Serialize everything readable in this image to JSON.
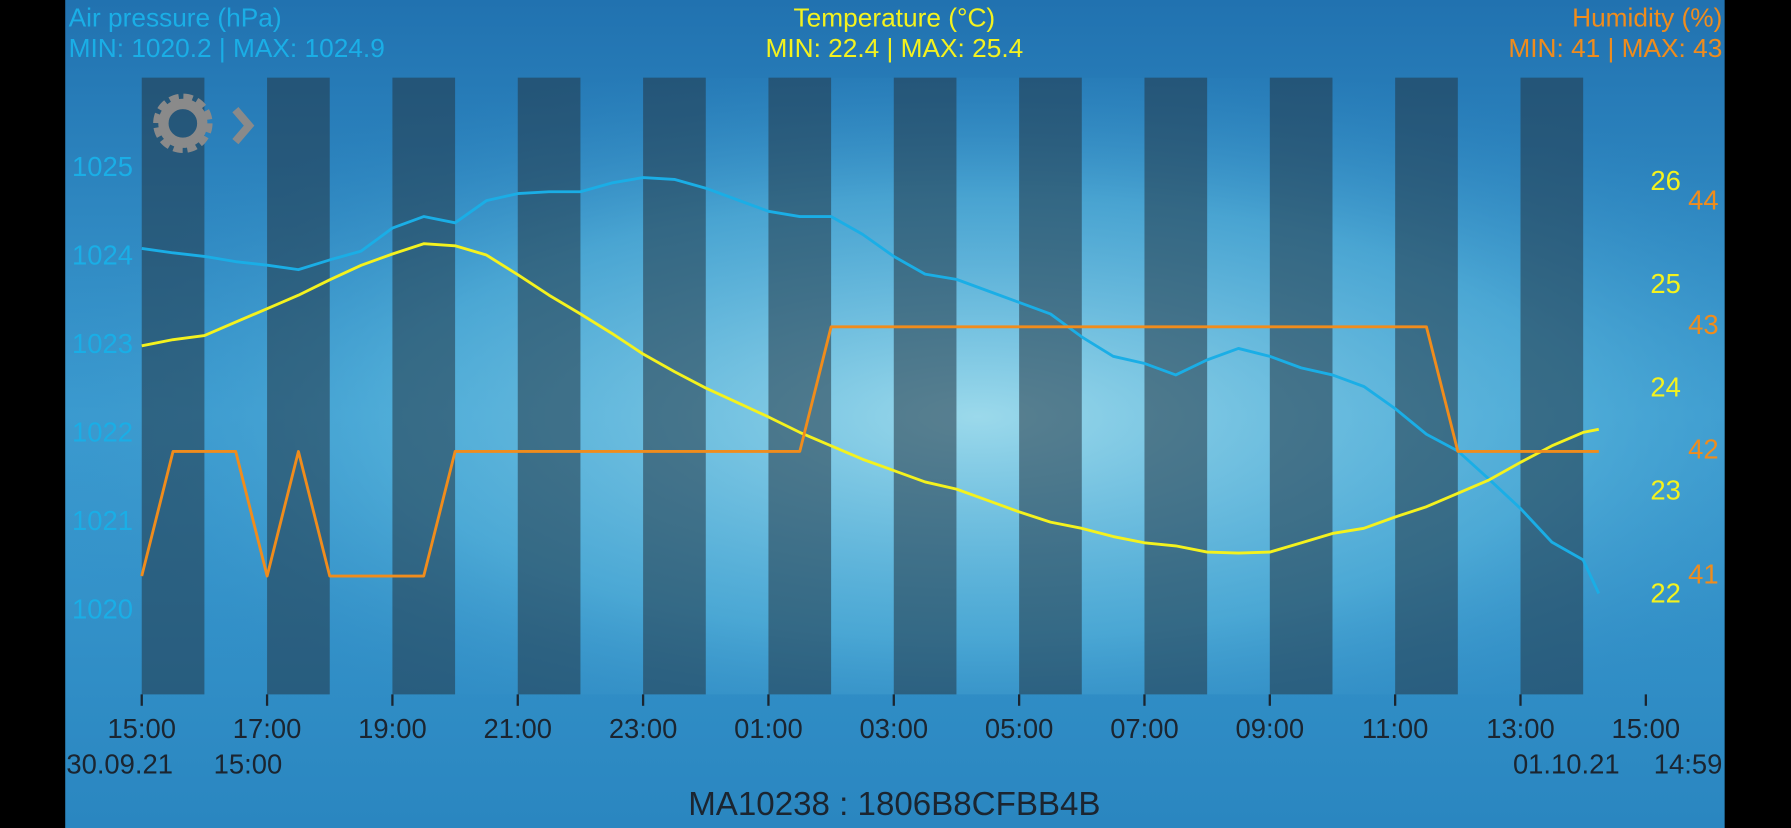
{
  "chart_data": {
    "type": "line",
    "x": [
      "15:00",
      "15:30",
      "16:00",
      "16:30",
      "17:00",
      "17:30",
      "18:00",
      "18:30",
      "19:00",
      "19:30",
      "20:00",
      "20:30",
      "21:00",
      "21:30",
      "22:00",
      "22:30",
      "23:00",
      "23:30",
      "00:00",
      "00:30",
      "01:00",
      "01:30",
      "02:00",
      "02:30",
      "03:00",
      "03:30",
      "04:00",
      "04:30",
      "05:00",
      "05:30",
      "06:00",
      "06:30",
      "07:00",
      "07:30",
      "08:00",
      "08:30",
      "09:00",
      "09:30",
      "10:00",
      "10:30",
      "11:00",
      "11:30",
      "12:00",
      "12:30",
      "13:00",
      "13:30",
      "14:00",
      "14:15"
    ],
    "series": [
      {
        "name": "Air pressure (hPa)",
        "summary": "MIN: 1020.2 | MAX: 1024.9",
        "color": "#1aaee6",
        "axis": "y",
        "values": [
          1024.1,
          1024.05,
          1024.01,
          1023.95,
          1023.91,
          1023.86,
          1023.97,
          1024.07,
          1024.33,
          1024.46,
          1024.39,
          1024.64,
          1024.72,
          1024.74,
          1024.74,
          1024.84,
          1024.9,
          1024.88,
          1024.78,
          1024.65,
          1024.52,
          1024.46,
          1024.46,
          1024.26,
          1024.01,
          1023.81,
          1023.75,
          1023.62,
          1023.49,
          1023.36,
          1023.1,
          1022.88,
          1022.8,
          1022.67,
          1022.84,
          1022.97,
          1022.88,
          1022.75,
          1022.67,
          1022.54,
          1022.29,
          1022.0,
          1021.81,
          1021.49,
          1021.16,
          1020.78,
          1020.58,
          1020.2
        ]
      },
      {
        "name": "Temperature (°C)",
        "summary": "MIN: 22.4 | MAX: 25.4",
        "color": "#f4f21e",
        "axis": "y2",
        "values": [
          24.42,
          24.48,
          24.52,
          24.65,
          24.78,
          24.91,
          25.06,
          25.2,
          25.31,
          25.41,
          25.39,
          25.3,
          25.11,
          24.91,
          24.73,
          24.54,
          24.34,
          24.17,
          24.01,
          23.87,
          23.73,
          23.58,
          23.45,
          23.32,
          23.21,
          23.1,
          23.03,
          22.92,
          22.81,
          22.71,
          22.65,
          22.57,
          22.51,
          22.48,
          22.42,
          22.41,
          22.42,
          22.51,
          22.6,
          22.65,
          22.76,
          22.86,
          22.99,
          23.12,
          23.29,
          23.45,
          23.58,
          23.61
        ]
      },
      {
        "name": "Humidity (%)",
        "summary": "MIN: 41 | MAX: 43",
        "color": "#f08c1c",
        "axis": "y3",
        "values": [
          41,
          42,
          42,
          42,
          41,
          42,
          41,
          41,
          41,
          41,
          42,
          42,
          42,
          42,
          42,
          42,
          42,
          42,
          42,
          42,
          42,
          42,
          43,
          43,
          43,
          43,
          43,
          43,
          43,
          43,
          43,
          43,
          43,
          43,
          43,
          43,
          43,
          43,
          43,
          43,
          43,
          43,
          42,
          42,
          42,
          42,
          42,
          42
        ]
      }
    ],
    "xticks": [
      "15:00",
      "17:00",
      "19:00",
      "21:00",
      "23:00",
      "01:00",
      "03:00",
      "05:00",
      "07:00",
      "09:00",
      "11:00",
      "13:00",
      "15:00"
    ],
    "ylim": [
      1019.06,
      1026.03
    ],
    "yticks": [
      1020,
      1021,
      1022,
      1023,
      1024,
      1025
    ],
    "y2lim": [
      21.04,
      27.02
    ],
    "y2ticks": [
      22,
      23,
      24,
      25,
      26
    ],
    "y3lim": [
      40.05,
      45.0
    ],
    "y3ticks": [
      41,
      42,
      43,
      44
    ],
    "range_labels": [
      "30.09.21",
      "15:00",
      "01.10.21",
      "14:59"
    ],
    "device": "MA10238 : 1806B8CFBB4B"
  }
}
